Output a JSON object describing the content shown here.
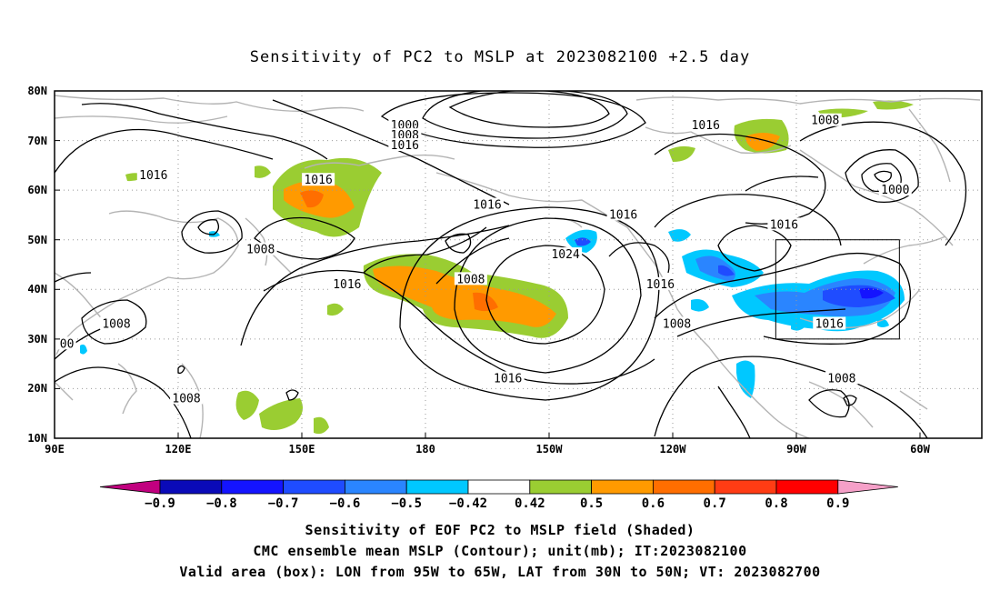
{
  "title": "Sensitivity of PC2 to MSLP at 2023082100 +2.5 day",
  "map": {
    "lon_ticks": [
      "90E",
      "120E",
      "150E",
      "180",
      "150W",
      "120W",
      "90W",
      "60W"
    ],
    "lat_ticks": [
      "80N",
      "70N",
      "60N",
      "50N",
      "40N",
      "30N",
      "20N",
      "10N"
    ],
    "extent": {
      "lon_min": 90,
      "lon_max": 315,
      "lat_min": 10,
      "lat_max": 80
    },
    "gridlines": "dotted",
    "contour_labels": [
      {
        "text": "1000",
        "lon": 175,
        "lat": 73
      },
      {
        "text": "1008",
        "lon": 175,
        "lat": 71
      },
      {
        "text": "1016",
        "lon": 175,
        "lat": 69
      },
      {
        "text": "1016",
        "lon": 114,
        "lat": 63
      },
      {
        "text": "1016",
        "lon": 154,
        "lat": 62
      },
      {
        "text": "1016",
        "lon": 195,
        "lat": 57
      },
      {
        "text": "1016",
        "lon": 228,
        "lat": 55
      },
      {
        "text": "1016",
        "lon": 248,
        "lat": 73
      },
      {
        "text": "1008",
        "lon": 277,
        "lat": 74
      },
      {
        "text": "1000",
        "lon": 294,
        "lat": 60
      },
      {
        "text": "1016",
        "lon": 267,
        "lat": 53
      },
      {
        "text": "1008",
        "lon": 140,
        "lat": 48
      },
      {
        "text": "1024",
        "lon": 214,
        "lat": 47
      },
      {
        "text": "1008",
        "lon": 191,
        "lat": 42
      },
      {
        "text": "1016",
        "lon": 161,
        "lat": 41
      },
      {
        "text": "1016",
        "lon": 237,
        "lat": 41
      },
      {
        "text": "1008",
        "lon": 105,
        "lat": 33
      },
      {
        "text": "00",
        "lon": 93,
        "lat": 29
      },
      {
        "text": "1008",
        "lon": 241,
        "lat": 33
      },
      {
        "text": "1016",
        "lon": 278,
        "lat": 33
      },
      {
        "text": "1016",
        "lon": 200,
        "lat": 22
      },
      {
        "text": "1008",
        "lon": 281,
        "lat": 22
      },
      {
        "text": "1008",
        "lon": 122,
        "lat": 18
      }
    ],
    "valid_box": {
      "lon_west": 265,
      "lon_east": 295,
      "lat_south": 30,
      "lat_north": 50
    },
    "colors": {
      "land_outline": "#b4b4b4",
      "contour": "#000000",
      "grid": "#999999"
    }
  },
  "colorbar": {
    "labels": [
      "-0.9",
      "-0.8",
      "-0.7",
      "-0.6",
      "-0.5",
      "-0.42",
      "0.42",
      "0.5",
      "0.6",
      "0.7",
      "0.8",
      "0.9"
    ],
    "colors": [
      "#c1007f",
      "#0a0ab8",
      "#1414ff",
      "#1f4cff",
      "#2a85ff",
      "#00c8ff",
      "#ffffff",
      "#9acd32",
      "#ff9a00",
      "#ff6e00",
      "#ff3c14",
      "#ff0000",
      "#f5a0c8"
    ]
  },
  "footer": {
    "line1": "Sensitivity of EOF PC2 to MSLP field (Shaded)",
    "line2": "CMC ensemble mean MSLP (Contour); unit(mb); IT:2023082100",
    "line3": "Valid area (box): LON from 95W to 65W, LAT from 30N to 50N; VT: 2023082700"
  }
}
